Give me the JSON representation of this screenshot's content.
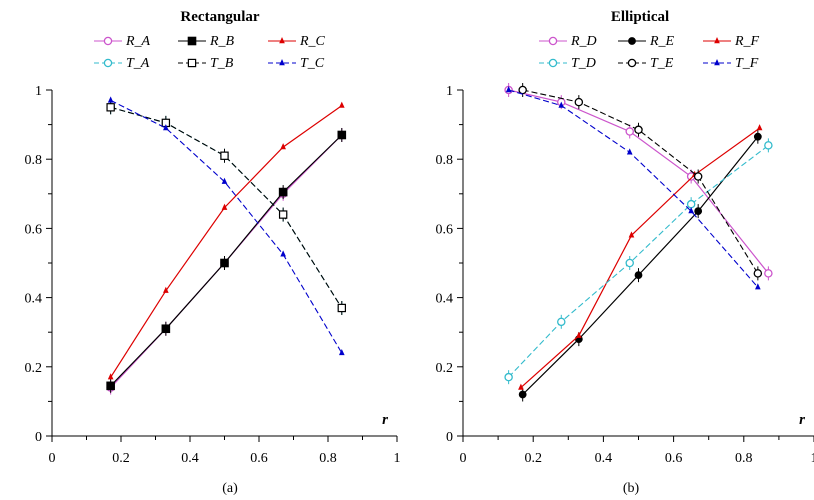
{
  "chart_data": [
    {
      "type": "line",
      "title": "Rectangular",
      "caption": "(a)",
      "xlabel": "r",
      "ylabel": "",
      "xlim": [
        0,
        1
      ],
      "ylim": [
        0,
        1
      ],
      "xticks": [
        "0",
        "0.2",
        "0.4",
        "0.6",
        "0.8",
        "1"
      ],
      "yticks": [
        "0",
        "0.2",
        "0.4",
        "0.6",
        "0.8",
        "1"
      ],
      "legend_position": "top",
      "series": [
        {
          "name": "R_A",
          "color": "#cc55cc",
          "dash": "solid",
          "marker": "circle-open",
          "x": [
            0.17,
            0.33,
            0.5,
            0.67,
            0.84
          ],
          "y": [
            0.14,
            0.31,
            0.5,
            0.7,
            0.87
          ]
        },
        {
          "name": "R_B",
          "color": "#000000",
          "dash": "solid",
          "marker": "square-filled",
          "x": [
            0.17,
            0.33,
            0.5,
            0.67,
            0.84
          ],
          "y": [
            0.145,
            0.31,
            0.5,
            0.705,
            0.87
          ]
        },
        {
          "name": "R_C",
          "color": "#dd0000",
          "dash": "solid",
          "marker": "triangle-small",
          "x": [
            0.17,
            0.33,
            0.5,
            0.67,
            0.84
          ],
          "y": [
            0.17,
            0.42,
            0.66,
            0.835,
            0.955
          ]
        },
        {
          "name": "T_A",
          "color": "#33bbcc",
          "dash": "dash",
          "marker": "circle-open",
          "x": [
            0.17,
            0.33,
            0.5,
            0.67,
            0.84
          ],
          "y": [
            0.95,
            0.905,
            0.81,
            0.64,
            0.37
          ]
        },
        {
          "name": "T_B",
          "color": "#000000",
          "dash": "dash",
          "marker": "square-open",
          "x": [
            0.17,
            0.33,
            0.5,
            0.67,
            0.84
          ],
          "y": [
            0.95,
            0.905,
            0.81,
            0.64,
            0.37
          ]
        },
        {
          "name": "T_C",
          "color": "#0000cc",
          "dash": "dash",
          "marker": "triangle-small",
          "x": [
            0.17,
            0.33,
            0.5,
            0.67,
            0.84
          ],
          "y": [
            0.97,
            0.89,
            0.735,
            0.525,
            0.24
          ]
        }
      ]
    },
    {
      "type": "line",
      "title": "Elliptical",
      "caption": "(b)",
      "xlabel": "r",
      "ylabel": "",
      "xlim": [
        0,
        1
      ],
      "ylim": [
        0,
        1
      ],
      "xticks": [
        "0",
        "0.2",
        "0.4",
        "0.6",
        "0.8",
        "1"
      ],
      "yticks": [
        "0",
        "0.2",
        "0.4",
        "0.6",
        "0.8",
        "1"
      ],
      "legend_position": "top",
      "series": [
        {
          "name": "R_D",
          "color": "#cc55cc",
          "dash": "solid",
          "marker": "circle-open",
          "x": [
            0.13,
            0.28,
            0.475,
            0.65,
            0.87
          ],
          "y": [
            1.0,
            0.965,
            0.88,
            0.75,
            0.47
          ]
        },
        {
          "name": "R_E",
          "color": "#000000",
          "dash": "solid",
          "marker": "circle-filled",
          "x": [
            0.17,
            0.33,
            0.5,
            0.67,
            0.84
          ],
          "y": [
            0.12,
            0.28,
            0.465,
            0.65,
            0.865
          ]
        },
        {
          "name": "R_F",
          "color": "#dd0000",
          "dash": "solid",
          "marker": "triangle-small",
          "x": [
            0.165,
            0.33,
            0.48,
            0.66,
            0.845
          ],
          "y": [
            0.14,
            0.29,
            0.58,
            0.755,
            0.89
          ]
        },
        {
          "name": "T_D",
          "color": "#33bbcc",
          "dash": "dash",
          "marker": "circle-open",
          "x": [
            0.13,
            0.28,
            0.475,
            0.65,
            0.87
          ],
          "y": [
            0.17,
            0.33,
            0.5,
            0.67,
            0.84
          ]
        },
        {
          "name": "T_E",
          "color": "#000000",
          "dash": "dash",
          "marker": "circle-open",
          "x": [
            0.17,
            0.33,
            0.5,
            0.67,
            0.84
          ],
          "y": [
            1.0,
            0.965,
            0.885,
            0.75,
            0.47
          ]
        },
        {
          "name": "T_F",
          "color": "#0000cc",
          "dash": "dash",
          "marker": "triangle-small",
          "x": [
            0.13,
            0.28,
            0.475,
            0.65,
            0.84
          ],
          "y": [
            1.0,
            0.955,
            0.82,
            0.65,
            0.43
          ]
        }
      ]
    }
  ]
}
